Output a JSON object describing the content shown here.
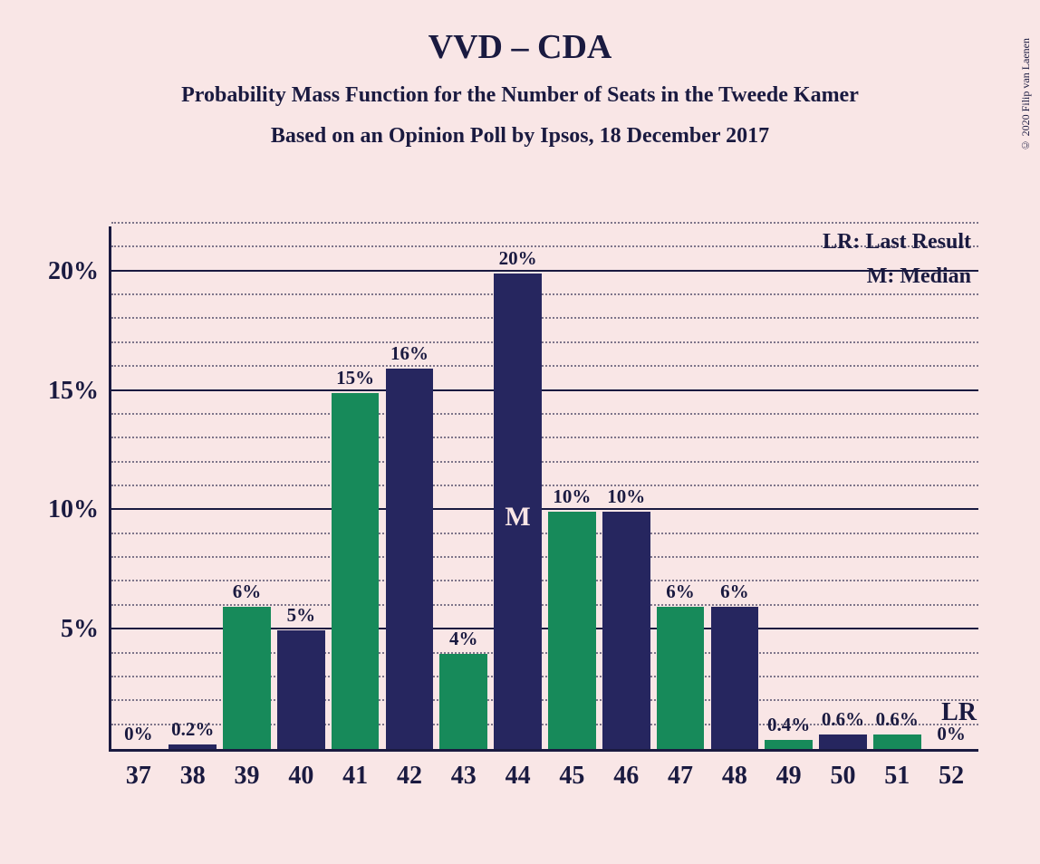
{
  "title": "VVD – CDA",
  "subtitle1": "Probability Mass Function for the Number of Seats in the Tweede Kamer",
  "subtitle2": "Based on an Opinion Poll by Ipsos, 18 December 2017",
  "copyright": "© 2020 Filip van Laenen",
  "legend": {
    "lr": "LR: Last Result",
    "m": "M: Median"
  },
  "lr_marker": "LR",
  "median_marker": "M",
  "chart": {
    "type": "bar",
    "ymax": 22,
    "ytick_step": 5,
    "minor_tick_step": 1,
    "colors": {
      "green": "#178a5a",
      "navy": "#26265f"
    },
    "background_color": "#f9e6e6",
    "axis_color": "#1a1a40",
    "title_fontsize": 38,
    "subtitle_fontsize": 24,
    "tick_fontsize": 28,
    "barlabel_fontsize": 21,
    "bars": [
      {
        "x": 37,
        "value": 0,
        "label": "0%",
        "color": "green"
      },
      {
        "x": 38,
        "value": 0.2,
        "label": "0.2%",
        "color": "navy"
      },
      {
        "x": 39,
        "value": 6,
        "label": "6%",
        "color": "green"
      },
      {
        "x": 40,
        "value": 5,
        "label": "5%",
        "color": "navy"
      },
      {
        "x": 41,
        "value": 15,
        "label": "15%",
        "color": "green"
      },
      {
        "x": 42,
        "value": 16,
        "label": "16%",
        "color": "navy"
      },
      {
        "x": 43,
        "value": 4,
        "label": "4%",
        "color": "green"
      },
      {
        "x": 44,
        "value": 20,
        "label": "20%",
        "color": "navy",
        "median": true
      },
      {
        "x": 45,
        "value": 10,
        "label": "10%",
        "color": "green"
      },
      {
        "x": 46,
        "value": 10,
        "label": "10%",
        "color": "navy"
      },
      {
        "x": 47,
        "value": 6,
        "label": "6%",
        "color": "green"
      },
      {
        "x": 48,
        "value": 6,
        "label": "6%",
        "color": "navy"
      },
      {
        "x": 49,
        "value": 0.4,
        "label": "0.4%",
        "color": "green"
      },
      {
        "x": 50,
        "value": 0.6,
        "label": "0.6%",
        "color": "navy"
      },
      {
        "x": 51,
        "value": 0.6,
        "label": "0.6%",
        "color": "green"
      },
      {
        "x": 52,
        "value": 0,
        "label": "0%",
        "color": "navy",
        "lr": true
      }
    ]
  }
}
